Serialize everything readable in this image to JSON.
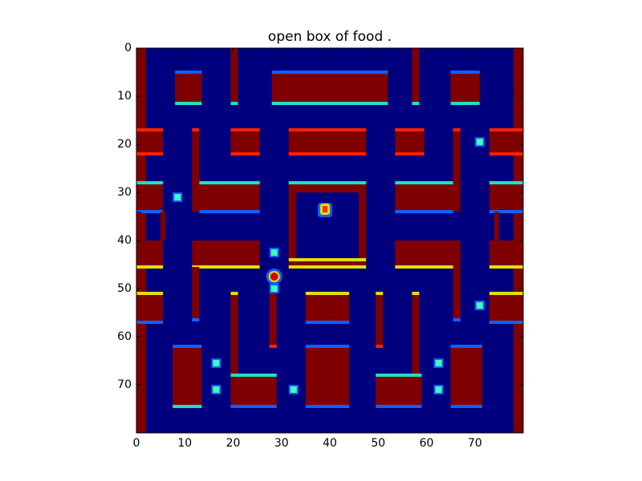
{
  "figure": {
    "title": "open box of food ."
  },
  "axes": {
    "x_ticks": [
      "0",
      "10",
      "20",
      "30",
      "40",
      "50",
      "60",
      "70"
    ],
    "y_ticks": [
      "0",
      "10",
      "20",
      "30",
      "40",
      "50",
      "60",
      "70"
    ],
    "xlim": [
      0,
      80
    ],
    "ylim": [
      0,
      80
    ],
    "y_inverted": true,
    "colormap": "jet"
  },
  "colors": {
    "background": "#00007f",
    "wall": "#7f0000",
    "wall_edge_red": "#ff2000",
    "edge_cyan": "#20e0c0",
    "edge_blue": "#1060ff",
    "edge_yellow": "#e0e000",
    "pellet": "#40ffb0"
  },
  "game": {
    "state": "open box of food",
    "pellets": [
      {
        "name": "pellet-1",
        "x": 8.5,
        "y": 31
      },
      {
        "name": "pellet-2",
        "x": 71,
        "y": 19.5
      },
      {
        "name": "pellet-3",
        "x": 28.5,
        "y": 42.5
      },
      {
        "name": "pellet-4",
        "x": 28.5,
        "y": 50
      },
      {
        "name": "pellet-5",
        "x": 71,
        "y": 53.5
      },
      {
        "name": "pellet-6",
        "x": 16.5,
        "y": 65.5
      },
      {
        "name": "pellet-7",
        "x": 62.5,
        "y": 65.5
      },
      {
        "name": "pellet-8",
        "x": 16.5,
        "y": 71
      },
      {
        "name": "pellet-9",
        "x": 32.5,
        "y": 71
      },
      {
        "name": "pellet-10",
        "x": 62.5,
        "y": 71
      }
    ],
    "player": {
      "name": "player-pacman",
      "x": 28.5,
      "y": 47.5
    },
    "ghost": {
      "name": "ghost",
      "x": 39,
      "y": 33
    }
  }
}
